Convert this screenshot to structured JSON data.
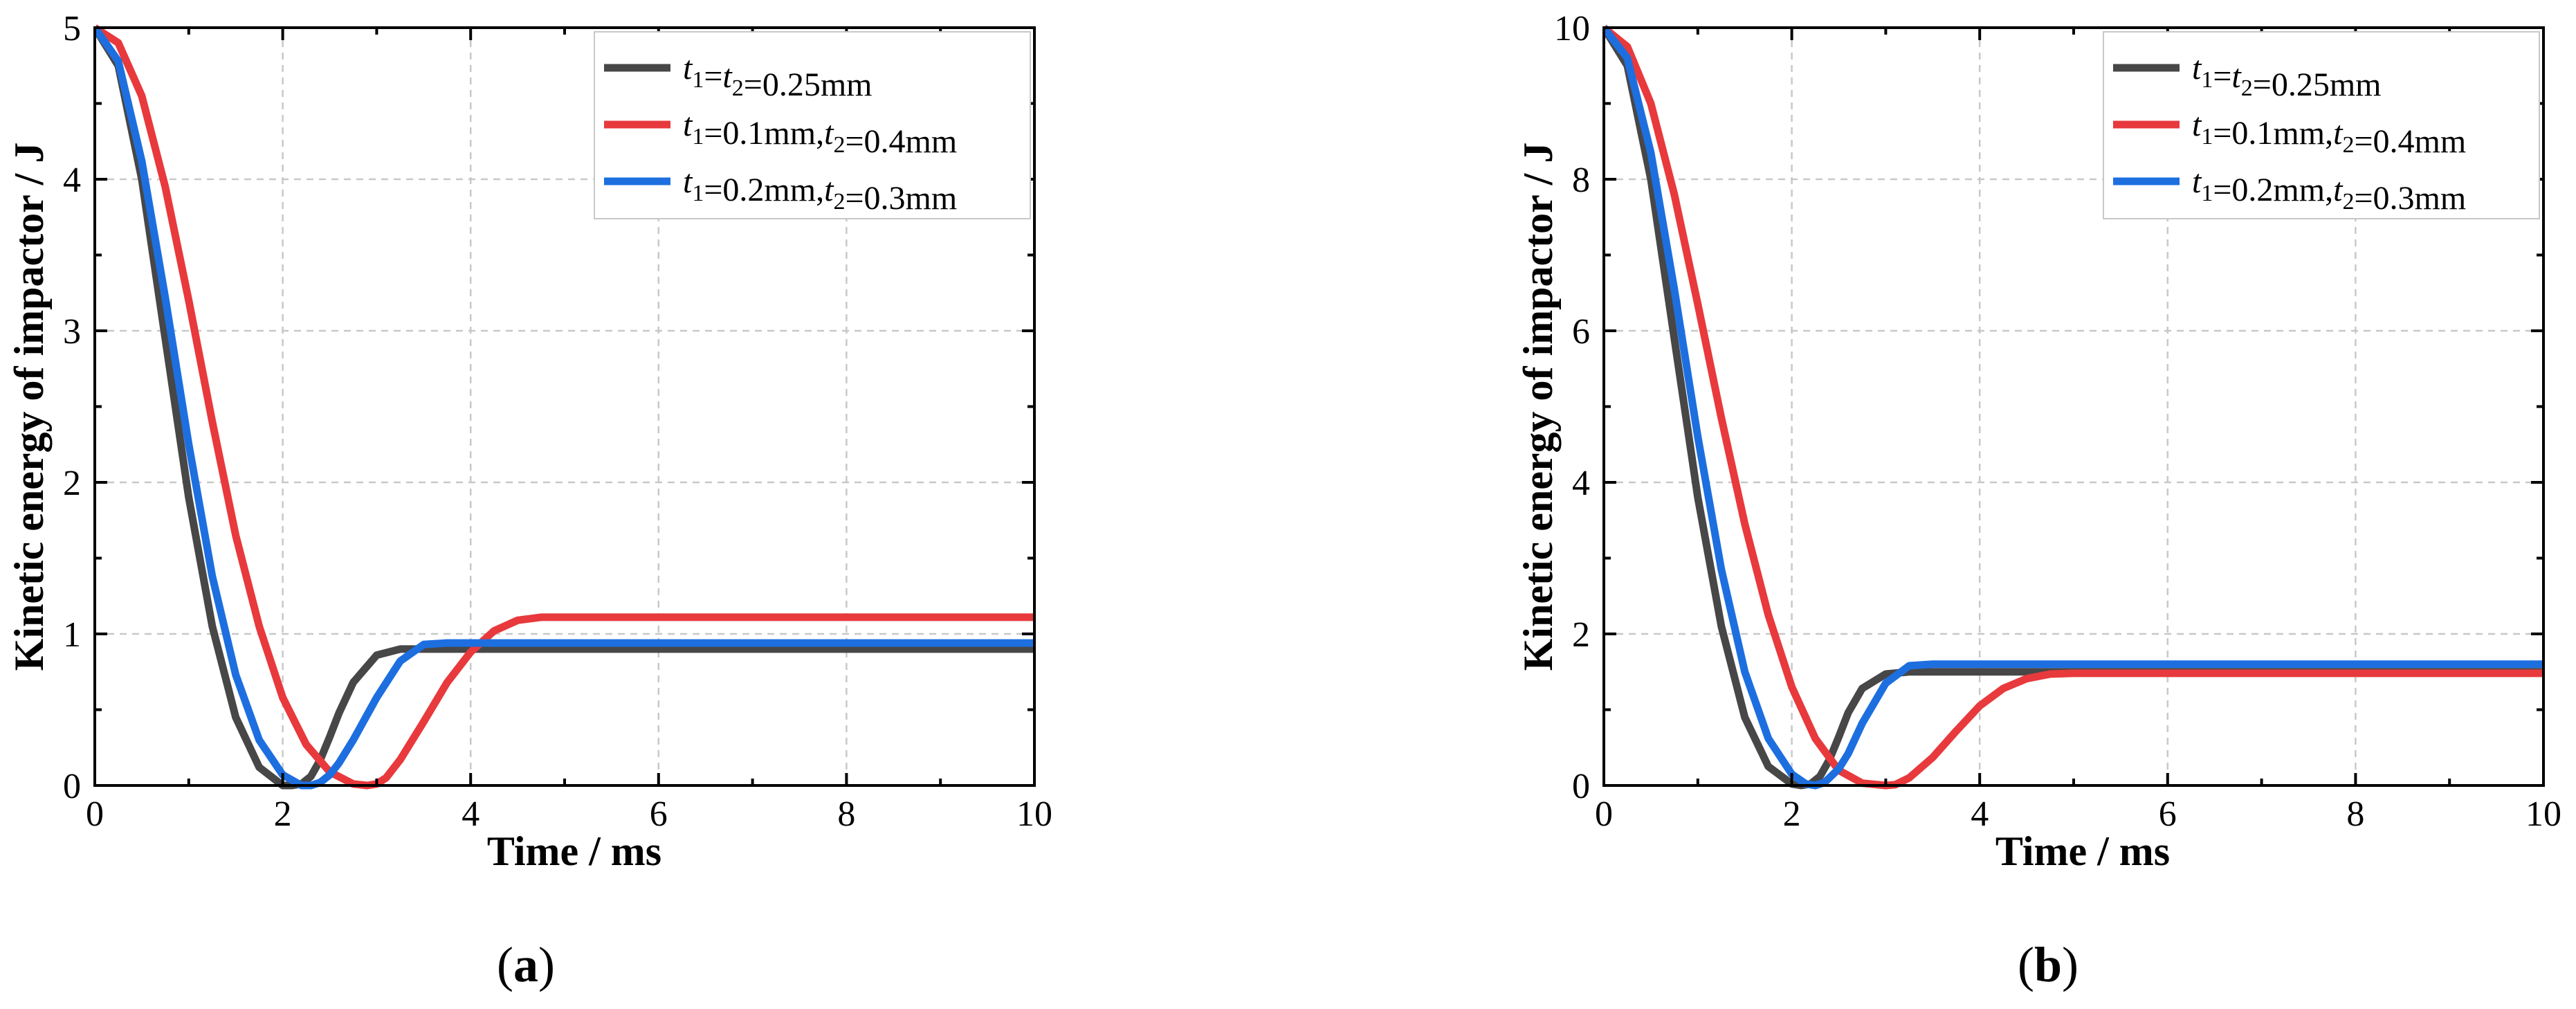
{
  "chart_data": [
    {
      "panel": "(a)",
      "type": "line",
      "xlabel": "Time / ms",
      "ylabel": "Kinetic energy of impactor / J",
      "xlim": [
        0,
        10
      ],
      "ylim": [
        0,
        5
      ],
      "xticks": [
        0,
        2,
        4,
        6,
        8,
        10
      ],
      "yticks": [
        0,
        1,
        2,
        3,
        4,
        5
      ],
      "legend_position": "top-right",
      "grid": true,
      "series": [
        {
          "name": "t1=t2=0.25mm",
          "legend": [
            [
              "t",
              "1",
              true
            ],
            [
              "=",
              null,
              false
            ],
            [
              "t",
              "2",
              true
            ],
            [
              "=0.25mm",
              null,
              false
            ]
          ],
          "color": "#474747",
          "x": [
            0,
            0.25,
            0.5,
            0.75,
            1.0,
            1.25,
            1.5,
            1.75,
            2.0,
            2.1,
            2.2,
            2.3,
            2.4,
            2.5,
            2.6,
            2.75,
            3.0,
            3.25,
            3.5,
            4.0,
            5.0,
            6.0,
            8.0,
            10.0
          ],
          "y": [
            5.0,
            4.75,
            4.0,
            2.95,
            1.9,
            1.05,
            0.45,
            0.12,
            0.0,
            0.0,
            0.01,
            0.06,
            0.17,
            0.32,
            0.48,
            0.68,
            0.86,
            0.9,
            0.9,
            0.9,
            0.9,
            0.9,
            0.9,
            0.9
          ]
        },
        {
          "name": "t1=0.1mm,t2=0.4mm",
          "legend": [
            [
              "t",
              "1",
              true
            ],
            [
              "=0.1mm,",
              null,
              false
            ],
            [
              "t",
              "2",
              true
            ],
            [
              "=0.4mm",
              null,
              false
            ]
          ],
          "color": "#e8393c",
          "x": [
            0,
            0.25,
            0.5,
            0.75,
            1.0,
            1.25,
            1.5,
            1.75,
            2.0,
            2.25,
            2.5,
            2.75,
            2.9,
            3.0,
            3.1,
            3.25,
            3.5,
            3.75,
            4.0,
            4.25,
            4.5,
            4.75,
            5.0,
            6.0,
            8.0,
            10.0
          ],
          "y": [
            5.0,
            4.9,
            4.55,
            3.95,
            3.2,
            2.4,
            1.65,
            1.05,
            0.58,
            0.27,
            0.09,
            0.01,
            0.0,
            0.01,
            0.05,
            0.17,
            0.42,
            0.68,
            0.88,
            1.02,
            1.09,
            1.11,
            1.11,
            1.11,
            1.11,
            1.11
          ]
        },
        {
          "name": "t1=0.2mm,t2=0.3mm",
          "legend": [
            [
              "t",
              "1",
              true
            ],
            [
              "=0.2mm,",
              null,
              false
            ],
            [
              "t",
              "2",
              true
            ],
            [
              "=0.3mm",
              null,
              false
            ]
          ],
          "color": "#1d6fe0",
          "x": [
            0,
            0.25,
            0.5,
            0.75,
            1.0,
            1.25,
            1.5,
            1.75,
            2.0,
            2.2,
            2.3,
            2.4,
            2.5,
            2.6,
            2.75,
            3.0,
            3.25,
            3.5,
            3.75,
            4.0,
            5.0,
            6.0,
            8.0,
            10.0
          ],
          "y": [
            5.0,
            4.78,
            4.12,
            3.22,
            2.25,
            1.38,
            0.73,
            0.3,
            0.07,
            0.0,
            0.0,
            0.02,
            0.07,
            0.15,
            0.3,
            0.58,
            0.82,
            0.93,
            0.94,
            0.94,
            0.94,
            0.94,
            0.94,
            0.94
          ]
        }
      ]
    },
    {
      "panel": "(b)",
      "type": "line",
      "xlabel": "Time / ms",
      "ylabel": "Kinetic energy of impactor / J",
      "xlim": [
        0,
        10
      ],
      "ylim": [
        0,
        10
      ],
      "xticks": [
        0,
        2,
        4,
        6,
        8,
        10
      ],
      "yticks": [
        0,
        2,
        4,
        6,
        8,
        10
      ],
      "legend_position": "top-right",
      "grid": true,
      "series": [
        {
          "name": "t1=t2=0.25mm",
          "legend": [
            [
              "t",
              "1",
              true
            ],
            [
              "=",
              null,
              false
            ],
            [
              "t",
              "2",
              true
            ],
            [
              "=0.25mm",
              null,
              false
            ]
          ],
          "color": "#474747",
          "x": [
            0,
            0.25,
            0.5,
            0.75,
            1.0,
            1.25,
            1.5,
            1.75,
            2.0,
            2.1,
            2.2,
            2.3,
            2.4,
            2.5,
            2.6,
            2.75,
            3.0,
            3.25,
            3.5,
            4.0,
            5.0,
            6.0,
            8.0,
            10.0
          ],
          "y": [
            10.0,
            9.5,
            8.0,
            5.9,
            3.8,
            2.1,
            0.9,
            0.25,
            0.02,
            0.0,
            0.02,
            0.12,
            0.34,
            0.64,
            0.96,
            1.28,
            1.47,
            1.5,
            1.5,
            1.5,
            1.5,
            1.5,
            1.5,
            1.5
          ]
        },
        {
          "name": "t1=0.1mm,t2=0.4mm",
          "legend": [
            [
              "t",
              "1",
              true
            ],
            [
              "=0.1mm,",
              null,
              false
            ],
            [
              "t",
              "2",
              true
            ],
            [
              "=0.4mm",
              null,
              false
            ]
          ],
          "color": "#e8393c",
          "x": [
            0,
            0.25,
            0.5,
            0.75,
            1.0,
            1.25,
            1.5,
            1.75,
            2.0,
            2.25,
            2.5,
            2.75,
            3.0,
            3.1,
            3.25,
            3.5,
            3.75,
            4.0,
            4.25,
            4.5,
            4.75,
            5.0,
            6.0,
            8.0,
            10.0
          ],
          "y": [
            10.0,
            9.75,
            9.0,
            7.8,
            6.35,
            4.85,
            3.45,
            2.25,
            1.3,
            0.62,
            0.2,
            0.03,
            0.0,
            0.01,
            0.1,
            0.37,
            0.72,
            1.05,
            1.28,
            1.41,
            1.47,
            1.48,
            1.48,
            1.48,
            1.48
          ]
        },
        {
          "name": "t1=0.2mm,t2=0.3mm",
          "legend": [
            [
              "t",
              "1",
              true
            ],
            [
              "=0.2mm,",
              null,
              false
            ],
            [
              "t",
              "2",
              true
            ],
            [
              "=0.3mm",
              null,
              false
            ]
          ],
          "color": "#1d6fe0",
          "x": [
            0,
            0.25,
            0.5,
            0.75,
            1.0,
            1.25,
            1.5,
            1.75,
            2.0,
            2.15,
            2.25,
            2.35,
            2.5,
            2.6,
            2.75,
            3.0,
            3.25,
            3.5,
            4.0,
            5.0,
            6.0,
            8.0,
            10.0
          ],
          "y": [
            10.0,
            9.6,
            8.35,
            6.55,
            4.6,
            2.85,
            1.5,
            0.62,
            0.15,
            0.02,
            0.0,
            0.04,
            0.22,
            0.42,
            0.82,
            1.35,
            1.58,
            1.6,
            1.6,
            1.6,
            1.6,
            1.6,
            1.6
          ]
        }
      ]
    }
  ]
}
